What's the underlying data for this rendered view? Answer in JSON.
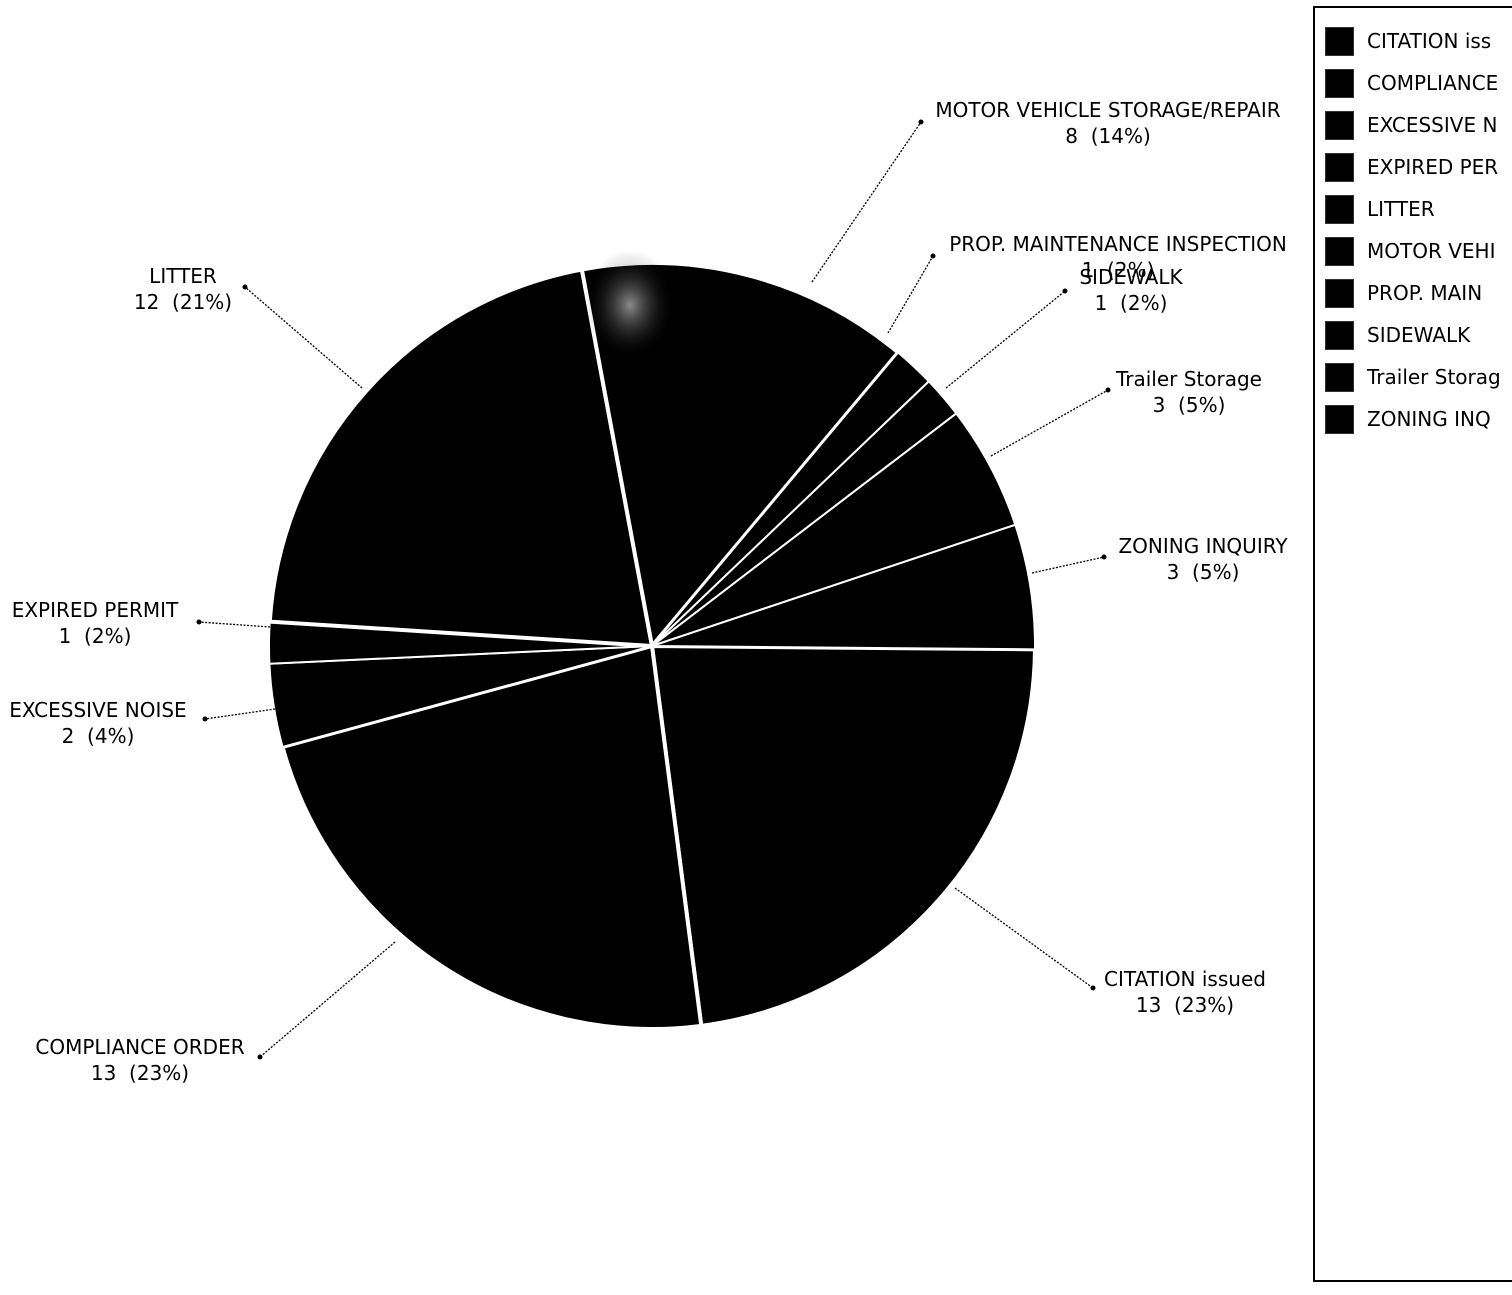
{
  "chart_data": {
    "type": "pie",
    "slices": [
      {
        "label": "CITATION issued",
        "value": 13,
        "percent": "23%",
        "value_label": "13  (23%)"
      },
      {
        "label": "COMPLIANCE ORDER",
        "value": 13,
        "percent": "23%",
        "value_label": "13  (23%)"
      },
      {
        "label": "EXCESSIVE NOISE",
        "value": 2,
        "percent": "4%",
        "value_label": "2  (4%)"
      },
      {
        "label": "EXPIRED PERMIT",
        "value": 1,
        "percent": "2%",
        "value_label": "1  (2%)"
      },
      {
        "label": "LITTER",
        "value": 12,
        "percent": "21%",
        "value_label": "12  (21%)"
      },
      {
        "label": "MOTOR VEHICLE STORAGE/REPAIR",
        "value": 8,
        "percent": "14%",
        "value_label": "8  (14%)"
      },
      {
        "label": "PROP. MAINTENANCE INSPECTION",
        "value": 1,
        "percent": "2%",
        "value_label": "1  (2%)"
      },
      {
        "label": "SIDEWALK",
        "value": 1,
        "percent": "2%",
        "value_label": "1  (2%)"
      },
      {
        "label": "Trailer Storage",
        "value": 3,
        "percent": "5%",
        "value_label": "3  (5%)"
      },
      {
        "label": "ZONING INQUIRY",
        "value": 3,
        "percent": "5%",
        "value_label": "3  (5%)"
      }
    ],
    "legend": {
      "placement": "right",
      "entries": [
        "CITATION iss",
        "COMPLIANCE",
        "EXCESSIVE N",
        "EXPIRED PER",
        "LITTER",
        "MOTOR VEHI",
        "PROP. MAIN",
        "SIDEWALK",
        "Trailer Storag",
        "ZONING INQ"
      ]
    },
    "colors": {
      "slice_fill": "#000000",
      "separator": "#ffffff",
      "leader_line": "#000000"
    }
  }
}
